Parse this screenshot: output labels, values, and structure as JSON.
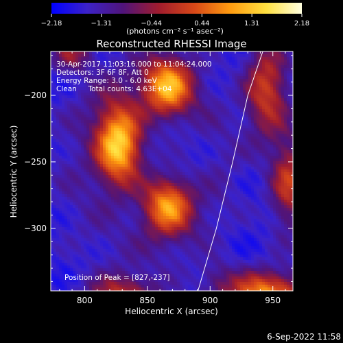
{
  "chart_data": {
    "type": "heatmap",
    "title": "Reconstructed RHESSI Image",
    "xlabel": "Heliocentric X (arcsec)",
    "ylabel": "Heliocentric Y (arcsec)",
    "xlim": [
      773,
      966
    ],
    "ylim": [
      -347,
      -167
    ],
    "xticks": [
      800,
      850,
      900,
      950
    ],
    "yticks": [
      -200,
      -250,
      -300
    ],
    "xtick_labels": [
      "800",
      "850",
      "900",
      "950"
    ],
    "ytick_labels": [
      "−200",
      "−250",
      "−300"
    ],
    "colorbar": {
      "min": -2.18,
      "max": 2.18,
      "ticks": [
        -2.18,
        -1.31,
        -0.44,
        0.44,
        1.31,
        2.18
      ],
      "tick_labels": [
        "−2.18",
        "−1.31",
        "−0.44",
        "0.44",
        "1.31",
        "2.18"
      ],
      "unit_text": "(photons cm⁻² s⁻¹ asec⁻²)",
      "colors": [
        "#0000ff",
        "#3c22c8",
        "#50147a",
        "#a01c2e",
        "#d84818",
        "#ff9c10",
        "#ffe040",
        "#ffffe0"
      ]
    },
    "annotations": [
      "30-Apr-2017 11:03:16.000 to 11:04:24.000",
      "Detectors: 3F 6F 8F, Att 0",
      "Energy Range: 3.0 - 6.0 keV",
      "Clean     Total counts: 4.63E+04",
      "Position of Peak = [827,-237]"
    ],
    "sources": [
      {
        "x": 827,
        "y": -237,
        "sx": 13,
        "sy": 22,
        "amp": 3.2
      },
      {
        "x": 866,
        "y": -194,
        "sx": 14,
        "sy": 16,
        "amp": 2.6
      },
      {
        "x": 866,
        "y": -283,
        "sx": 14,
        "sy": 15,
        "amp": 2.6
      },
      {
        "x": 945,
        "y": -196,
        "sx": 12,
        "sy": 26,
        "amp": 1.8
      },
      {
        "x": 963,
        "y": -266,
        "sx": 10,
        "sy": 24,
        "amp": 1.7
      },
      {
        "x": 830,
        "y": -352,
        "sx": 20,
        "sy": 12,
        "amp": 1.7
      },
      {
        "x": 945,
        "y": -350,
        "sx": 22,
        "sy": 12,
        "amp": 2.6
      },
      {
        "x": 790,
        "y": -168,
        "sx": 12,
        "sy": 10,
        "amp": 1.2
      },
      {
        "x": 905,
        "y": -338,
        "sx": 10,
        "sy": 10,
        "amp": 0.6
      }
    ],
    "limb_curve": [
      [
        890,
        -348
      ],
      [
        905,
        -300
      ],
      [
        918,
        -250
      ],
      [
        930,
        -200
      ],
      [
        942,
        -167
      ]
    ]
  },
  "footer": {
    "date": "6-Sep-2022 11:58"
  }
}
